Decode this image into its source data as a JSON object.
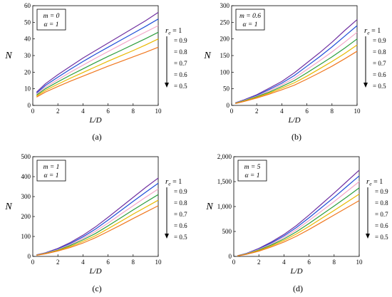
{
  "chart_data": [
    {
      "panel": "(a)",
      "type": "line",
      "annotation": [
        "m = 0",
        "α = 1"
      ],
      "xlabel": "L/D",
      "ylabel": "N",
      "xlim": [
        0,
        10
      ],
      "ylim": [
        0,
        60
      ],
      "xticks": [
        "0",
        "2",
        "4",
        "6",
        "8",
        "10"
      ],
      "yticks": [
        "0",
        "10",
        "20",
        "30",
        "40",
        "50",
        "60"
      ],
      "x": [
        0.3,
        1,
        2,
        3,
        4,
        5,
        6,
        7,
        8,
        9,
        10
      ],
      "series": [
        {
          "name": "r_e = 1",
          "color": "#7030A0",
          "values": [
            8,
            13,
            18.5,
            23.5,
            28.5,
            33,
            37.5,
            42,
            46.5,
            51,
            56
          ]
        },
        {
          "name": "= 0.9",
          "color": "#1F4FD8",
          "values": [
            7.4,
            12,
            17,
            21.8,
            26.4,
            30.8,
            35,
            39.2,
            43.4,
            47.6,
            52
          ]
        },
        {
          "name": "= 0.8",
          "color": "#F4A6C8",
          "values": [
            6.8,
            11,
            15.5,
            20,
            24.2,
            28.4,
            32.4,
            36.4,
            40.4,
            44.2,
            48
          ]
        },
        {
          "name": "= 0.7",
          "color": "#2E9E3E",
          "values": [
            6.2,
            10,
            14.2,
            18.2,
            22,
            25.8,
            29.5,
            33,
            36.6,
            40.2,
            44
          ]
        },
        {
          "name": "= 0.6",
          "color": "#E8B800",
          "values": [
            5.6,
            9,
            12.8,
            16.4,
            19.8,
            23.2,
            26.6,
            29.8,
            33,
            36.4,
            40
          ]
        },
        {
          "name": "= 0.5",
          "color": "#F07820",
          "values": [
            5,
            8,
            11.4,
            14.6,
            17.6,
            20.6,
            23.6,
            26.4,
            29.2,
            32,
            35
          ]
        }
      ],
      "legend": {
        "title": "r_e = 1",
        "entries": [
          "= 0.9",
          "= 0.8",
          "= 0.7",
          "= 0.6",
          "= 0.5"
        ]
      }
    },
    {
      "panel": "(b)",
      "type": "line",
      "annotation": [
        "m = 0.6",
        "α = 1"
      ],
      "xlabel": "L/D",
      "ylabel": "N",
      "xlim": [
        0,
        10
      ],
      "ylim": [
        0,
        300
      ],
      "xticks": [
        "0",
        "2",
        "4",
        "6",
        "8",
        "10"
      ],
      "yticks": [
        "0",
        "50",
        "100",
        "150",
        "200",
        "250",
        "300"
      ],
      "x": [
        0.3,
        1,
        2,
        3,
        4,
        5,
        6,
        7,
        8,
        9,
        10
      ],
      "series": [
        {
          "name": "r_e = 1",
          "color": "#7030A0",
          "values": [
            8,
            17,
            32,
            52,
            72,
            98,
            128,
            158,
            190,
            225,
            258
          ]
        },
        {
          "name": "= 0.9",
          "color": "#1F4FD8",
          "values": [
            7.5,
            16,
            30,
            48,
            67,
            90,
            118,
            146,
            176,
            208,
            240
          ]
        },
        {
          "name": "= 0.8",
          "color": "#F4A6C8",
          "values": [
            7,
            15,
            28,
            44,
            62,
            82,
            108,
            134,
            161,
            190,
            220
          ]
        },
        {
          "name": "= 0.7",
          "color": "#2E9E3E",
          "values": [
            6.5,
            14,
            26,
            40,
            57,
            75,
            98,
            122,
            146,
            172,
            200
          ]
        },
        {
          "name": "= 0.6",
          "color": "#E8B800",
          "values": [
            6,
            13,
            24,
            37,
            52,
            68,
            88,
            110,
            132,
            156,
            182
          ]
        },
        {
          "name": "= 0.5",
          "color": "#F07820",
          "values": [
            5.5,
            12,
            22,
            34,
            47,
            61,
            79,
            98,
            118,
            140,
            163
          ]
        }
      ],
      "legend": {
        "title": "r_e = 1",
        "entries": [
          "= 0.9",
          "= 0.8",
          "= 0.7",
          "= 0.6",
          "= 0.5"
        ]
      }
    },
    {
      "panel": "(c)",
      "type": "line",
      "annotation": [
        "m = 1",
        "α = 1"
      ],
      "xlabel": "L/D",
      "ylabel": "N",
      "xlim": [
        0,
        10
      ],
      "ylim": [
        0,
        500
      ],
      "xticks": [
        "0",
        "2",
        "4",
        "6",
        "8",
        "10"
      ],
      "yticks": [
        "0",
        "100",
        "200",
        "300",
        "400",
        "500"
      ],
      "x": [
        0.3,
        1,
        2,
        3,
        4,
        5,
        6,
        7,
        8,
        9,
        10
      ],
      "series": [
        {
          "name": "r_e = 1",
          "color": "#7030A0",
          "values": [
            8,
            18,
            40,
            70,
            106,
            148,
            196,
            246,
            296,
            346,
            393
          ]
        },
        {
          "name": "= 0.9",
          "color": "#1F4FD8",
          "values": [
            7.5,
            17,
            37,
            65,
            98,
            137,
            182,
            229,
            276,
            322,
            367
          ]
        },
        {
          "name": "= 0.8",
          "color": "#F4A6C8",
          "values": [
            7,
            16,
            34,
            60,
            90,
            126,
            167,
            211,
            254,
            297,
            338
          ]
        },
        {
          "name": "= 0.7",
          "color": "#2E9E3E",
          "values": [
            6.5,
            15,
            31,
            55,
            83,
            115,
            153,
            193,
            233,
            272,
            310
          ]
        },
        {
          "name": "= 0.6",
          "color": "#E8B800",
          "values": [
            6,
            14,
            29,
            50,
            75,
            104,
            139,
            175,
            212,
            247,
            282
          ]
        },
        {
          "name": "= 0.5",
          "color": "#F07820",
          "values": [
            5.5,
            13,
            27,
            45,
            67,
            94,
            125,
            157,
            190,
            222,
            254
          ]
        }
      ],
      "legend": {
        "title": "r_e = 1",
        "entries": [
          "= 0.9",
          "= 0.8",
          "= 0.7",
          "= 0.6",
          "= 0.5"
        ]
      }
    },
    {
      "panel": "(d)",
      "type": "line",
      "annotation": [
        "m = 5",
        "α = 1"
      ],
      "xlabel": "L/D",
      "ylabel": "N",
      "xlim": [
        0,
        10
      ],
      "ylim": [
        0,
        2000
      ],
      "xticks": [
        "0",
        "2",
        "4",
        "6",
        "8",
        "10"
      ],
      "yticks": [
        "0",
        "500",
        "1,000",
        "1,500",
        "2,000"
      ],
      "x": [
        0.3,
        1,
        2,
        3,
        4,
        5,
        6,
        7,
        8,
        9,
        10
      ],
      "series": [
        {
          "name": "r_e = 1",
          "color": "#7030A0",
          "values": [
            15,
            60,
            160,
            290,
            440,
            620,
            830,
            1050,
            1270,
            1500,
            1730
          ]
        },
        {
          "name": "= 0.9",
          "color": "#1F4FD8",
          "values": [
            14,
            56,
            150,
            270,
            410,
            580,
            775,
            980,
            1185,
            1400,
            1615
          ]
        },
        {
          "name": "= 0.8",
          "color": "#F4A6C8",
          "values": [
            13,
            52,
            140,
            250,
            380,
            538,
            720,
            910,
            1100,
            1300,
            1500
          ]
        },
        {
          "name": "= 0.7",
          "color": "#2E9E3E",
          "values": [
            12,
            48,
            128,
            230,
            350,
            495,
            660,
            835,
            1010,
            1190,
            1375
          ]
        },
        {
          "name": "= 0.6",
          "color": "#E8B800",
          "values": [
            11,
            44,
            116,
            210,
            320,
            452,
            602,
            762,
            922,
            1085,
            1250
          ]
        },
        {
          "name": "= 0.5",
          "color": "#F07820",
          "values": [
            10,
            40,
            104,
            190,
            288,
            405,
            540,
            685,
            830,
            975,
            1120
          ]
        }
      ],
      "legend": {
        "title": "r_e = 1",
        "entries": [
          "= 0.9",
          "= 0.8",
          "= 0.7",
          "= 0.6",
          "= 0.5"
        ]
      }
    }
  ]
}
